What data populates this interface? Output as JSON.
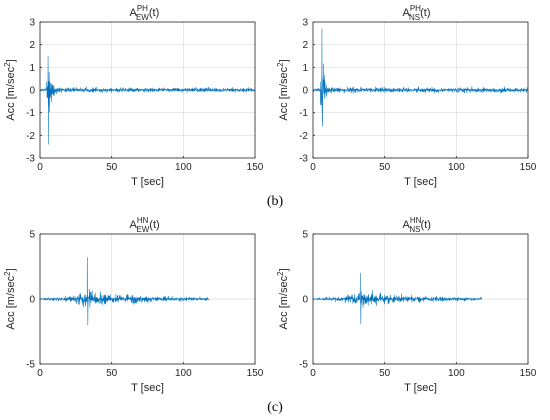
{
  "chart_data": [
    {
      "type": "line",
      "title": {
        "base": "A",
        "sup": "PH",
        "sub": "EW",
        "arg": "(t)"
      },
      "xlabel": "T [sec]",
      "ylabel": {
        "text": "Acc [m/sec",
        "sup": "2",
        "end": "]"
      },
      "xlim": [
        0,
        150
      ],
      "ylim": [
        -3,
        3
      ],
      "xticks": [
        "0",
        "50",
        "100",
        "150"
      ],
      "yticks": [
        "-3",
        "-2",
        "-1",
        "0",
        "1",
        "2",
        "3"
      ],
      "grid": true,
      "color": "#0072BD",
      "signal": {
        "duration": 150,
        "peak_pos": 1.5,
        "peak_neg": -2.4,
        "peak_time": 5.6,
        "event_time": 108,
        "event_amp": 0.1
      }
    },
    {
      "type": "line",
      "title": {
        "base": "A",
        "sup": "PH",
        "sub": "NS",
        "arg": "(t)"
      },
      "xlabel": "T [sec]",
      "ylabel": {
        "text": "Acc [m/sec",
        "sup": "2",
        "end": "]"
      },
      "xlim": [
        0,
        150
      ],
      "ylim": [
        -3,
        3
      ],
      "xticks": [
        "0",
        "50",
        "100",
        "150"
      ],
      "yticks": [
        "-3",
        "-2",
        "-1",
        "0",
        "1",
        "2",
        "3"
      ],
      "grid": true,
      "color": "#0072BD",
      "signal": {
        "duration": 150,
        "peak_pos": 2.7,
        "peak_neg": -1.6,
        "peak_time": 6.2,
        "event_time": 108,
        "event_amp": 0.08
      }
    },
    {
      "type": "line",
      "title": {
        "base": "A",
        "sup": "HN",
        "sub": "EW",
        "arg": "(t)"
      },
      "xlabel": "T [sec]",
      "ylabel": {
        "text": "Acc [m/sec",
        "sup": "2",
        "end": "]"
      },
      "xlim": [
        0,
        150
      ],
      "ylim": [
        -5,
        5
      ],
      "xticks": [
        "0",
        "50",
        "100",
        "150"
      ],
      "yticks": [
        "-5",
        "0",
        "5"
      ],
      "grid": true,
      "color": "#0072BD",
      "signal": {
        "duration": 118,
        "peak_pos": 3.2,
        "peak_neg": -2.0,
        "peak_time": 33
      }
    },
    {
      "type": "line",
      "title": {
        "base": "A",
        "sup": "HN",
        "sub": "NS",
        "arg": "(t)"
      },
      "xlabel": "T [sec]",
      "ylabel": {
        "text": "Acc [m/sec",
        "sup": "2",
        "end": "]"
      },
      "xlim": [
        0,
        150
      ],
      "ylim": [
        -5,
        5
      ],
      "xticks": [
        "0",
        "50",
        "100",
        "150"
      ],
      "yticks": [
        "-5",
        "0",
        "5"
      ],
      "grid": true,
      "color": "#0072BD",
      "signal": {
        "duration": 118,
        "peak_pos": 2.0,
        "peak_neg": -1.9,
        "peak_time": 33
      }
    }
  ],
  "panel_labels": [
    "(b)",
    "(c)"
  ]
}
